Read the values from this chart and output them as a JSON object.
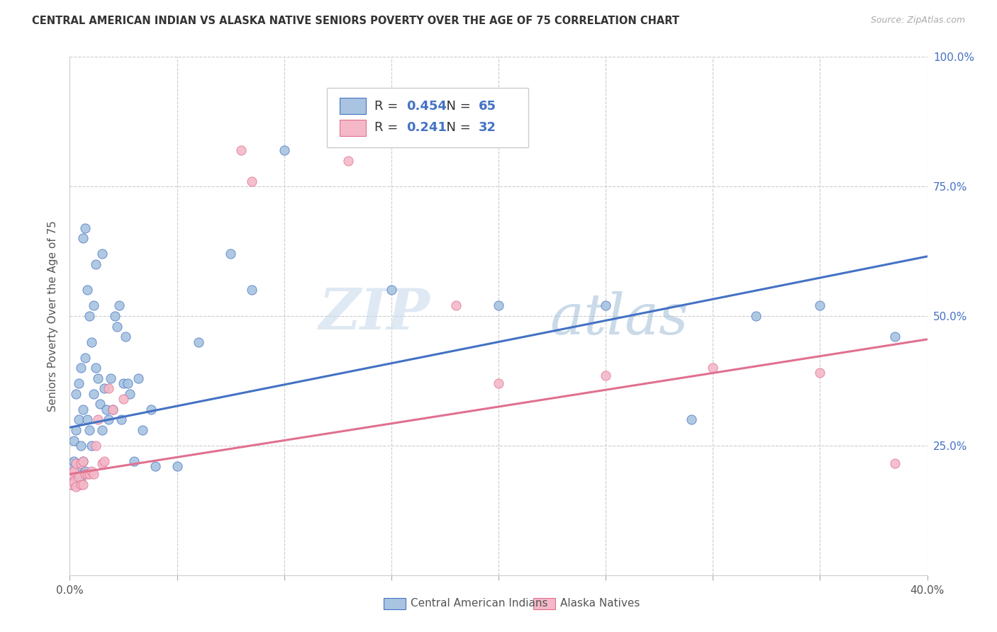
{
  "title": "CENTRAL AMERICAN INDIAN VS ALASKA NATIVE SENIORS POVERTY OVER THE AGE OF 75 CORRELATION CHART",
  "source": "Source: ZipAtlas.com",
  "ylabel": "Seniors Poverty Over the Age of 75",
  "blue_label": "Central American Indians",
  "pink_label": "Alaska Natives",
  "blue_R": 0.454,
  "blue_N": 65,
  "pink_R": 0.241,
  "pink_N": 32,
  "xlim": [
    0.0,
    0.4
  ],
  "ylim": [
    0.0,
    1.0
  ],
  "blue_color": "#a8c4e0",
  "blue_line_color": "#4472c4",
  "pink_color": "#f4b8c8",
  "pink_line_color": "#e07090",
  "watermark_zip": "ZIP",
  "watermark_atlas": "atlas",
  "blue_line_y0": 0.285,
  "blue_line_y1": 0.615,
  "pink_line_y0": 0.195,
  "pink_line_y1": 0.455,
  "blue_scatter_x": [
    0.001,
    0.001,
    0.001,
    0.002,
    0.002,
    0.002,
    0.003,
    0.003,
    0.003,
    0.004,
    0.004,
    0.004,
    0.005,
    0.005,
    0.005,
    0.006,
    0.006,
    0.006,
    0.007,
    0.007,
    0.007,
    0.008,
    0.008,
    0.009,
    0.009,
    0.01,
    0.01,
    0.011,
    0.011,
    0.012,
    0.012,
    0.013,
    0.014,
    0.015,
    0.015,
    0.016,
    0.017,
    0.018,
    0.019,
    0.02,
    0.021,
    0.022,
    0.023,
    0.024,
    0.025,
    0.026,
    0.027,
    0.028,
    0.03,
    0.032,
    0.034,
    0.038,
    0.04,
    0.05,
    0.06,
    0.075,
    0.085,
    0.1,
    0.15,
    0.2,
    0.25,
    0.29,
    0.32,
    0.35,
    0.385
  ],
  "blue_scatter_y": [
    0.175,
    0.195,
    0.215,
    0.18,
    0.22,
    0.26,
    0.19,
    0.28,
    0.35,
    0.21,
    0.3,
    0.37,
    0.18,
    0.25,
    0.4,
    0.22,
    0.32,
    0.65,
    0.2,
    0.42,
    0.67,
    0.3,
    0.55,
    0.28,
    0.5,
    0.25,
    0.45,
    0.35,
    0.52,
    0.4,
    0.6,
    0.38,
    0.33,
    0.28,
    0.62,
    0.36,
    0.32,
    0.3,
    0.38,
    0.32,
    0.5,
    0.48,
    0.52,
    0.3,
    0.37,
    0.46,
    0.37,
    0.35,
    0.22,
    0.38,
    0.28,
    0.32,
    0.21,
    0.21,
    0.45,
    0.62,
    0.55,
    0.82,
    0.55,
    0.52,
    0.52,
    0.3,
    0.5,
    0.52,
    0.46
  ],
  "pink_scatter_x": [
    0.001,
    0.001,
    0.002,
    0.002,
    0.003,
    0.003,
    0.004,
    0.005,
    0.005,
    0.006,
    0.006,
    0.007,
    0.008,
    0.009,
    0.01,
    0.011,
    0.012,
    0.013,
    0.015,
    0.016,
    0.018,
    0.02,
    0.025,
    0.08,
    0.085,
    0.13,
    0.18,
    0.2,
    0.25,
    0.3,
    0.35,
    0.385
  ],
  "pink_scatter_y": [
    0.175,
    0.195,
    0.18,
    0.2,
    0.17,
    0.215,
    0.19,
    0.175,
    0.215,
    0.175,
    0.22,
    0.195,
    0.195,
    0.195,
    0.2,
    0.195,
    0.25,
    0.3,
    0.215,
    0.22,
    0.36,
    0.32,
    0.34,
    0.82,
    0.76,
    0.8,
    0.52,
    0.37,
    0.385,
    0.4,
    0.39,
    0.215
  ]
}
